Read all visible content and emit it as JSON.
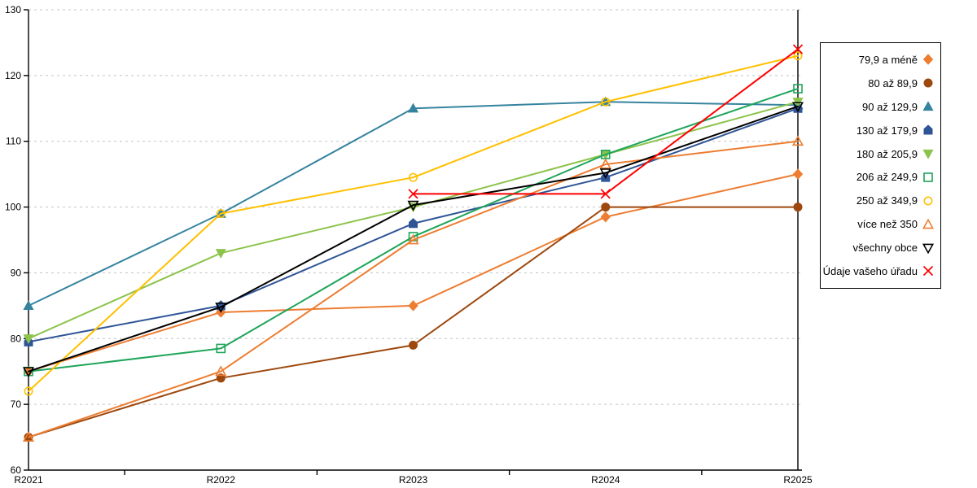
{
  "chart_data": {
    "type": "line",
    "title": "",
    "xlabel": "",
    "ylabel": "",
    "categories": [
      "R2021",
      "R2022",
      "R2023",
      "R2024",
      "R2025"
    ],
    "ylim": [
      60,
      130
    ],
    "yticks": [
      "60",
      "70",
      "80",
      "90",
      "100",
      "110",
      "120",
      "130"
    ],
    "grid": "horizontal-dashed",
    "grid_color": "#c3c3c3",
    "axis_color": "#000000",
    "legend_position": "right",
    "series": [
      {
        "name": "79,9 a méně",
        "color": "#ED7D31",
        "marker": "diamond",
        "filled": true,
        "values": [
          75,
          84,
          85,
          98.5,
          105
        ]
      },
      {
        "name": "80 až 89,9",
        "color": "#9E480E",
        "marker": "circle",
        "filled": true,
        "values": [
          65,
          74,
          79,
          100,
          100
        ]
      },
      {
        "name": "90 až 129,9",
        "color": "#35839E",
        "marker": "triangle-up",
        "filled": true,
        "values": [
          85,
          99,
          115,
          116,
          115.5
        ]
      },
      {
        "name": "130 až 179,9",
        "color": "#2F5597",
        "marker": "pentagon",
        "filled": true,
        "values": [
          79.5,
          85,
          97.5,
          104.5,
          115
        ]
      },
      {
        "name": "180 až 205,9",
        "color": "#8CC34B",
        "marker": "triangle-down",
        "filled": true,
        "values": [
          80,
          93,
          100,
          108,
          116
        ]
      },
      {
        "name": "206 až 249,9",
        "color": "#1EA55A",
        "marker": "square",
        "filled": false,
        "values": [
          75,
          78.5,
          95.5,
          108,
          118
        ]
      },
      {
        "name": "250 až 349,9",
        "color": "#FFC000",
        "marker": "circle",
        "filled": false,
        "values": [
          72,
          99,
          104.5,
          116,
          123
        ]
      },
      {
        "name": "více než 350",
        "color": "#ED7D31",
        "marker": "triangle-up",
        "filled": false,
        "values": [
          65,
          75,
          95,
          106.5,
          110
        ]
      },
      {
        "name": "všechny obce",
        "color": "#000000",
        "marker": "triangle-down",
        "filled": false,
        "values": [
          75,
          84.8,
          100.3,
          105.2,
          115.3
        ]
      },
      {
        "name": "Údaje vašeho úřadu",
        "color": "#FF0000",
        "marker": "x",
        "filled": false,
        "values": [
          null,
          null,
          102,
          102,
          124
        ]
      }
    ]
  }
}
